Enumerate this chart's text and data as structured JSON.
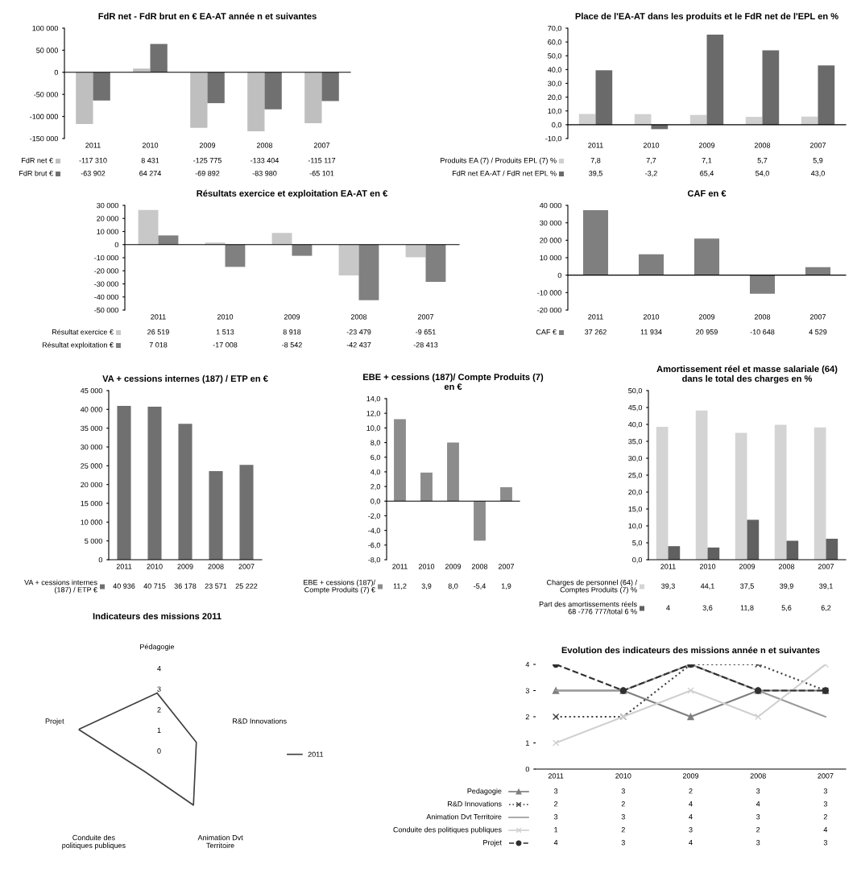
{
  "chart_data": [
    {
      "type": "bar",
      "title": "FdR net - FdR brut en € EA-AT année n et suivantes",
      "categories": [
        "2011",
        "2010",
        "2009",
        "2008",
        "2007"
      ],
      "legend": "bottom",
      "ylim": [
        -150000,
        100000
      ],
      "yticks": [
        {
          "value": -150000,
          "label": "-150 000"
        },
        {
          "value": -100000,
          "label": "-100 000"
        },
        {
          "value": -50000,
          "label": "-50 000"
        },
        0,
        {
          "value": 50000,
          "label": "50 000"
        },
        {
          "value": 100000,
          "label": "100 000"
        }
      ],
      "series": [
        {
          "name": "FdR net €",
          "color": "#bfbfbf",
          "values": [
            -117310,
            8431,
            -125775,
            -133404,
            -115117
          ],
          "value_labels": [
            "-117 310",
            "8 431",
            "-125 775",
            "-133 404",
            "-115 117"
          ]
        },
        {
          "name": "FdR brut €",
          "color": "#707070",
          "values": [
            -63902,
            64274,
            -69892,
            -83980,
            -65101
          ],
          "value_labels": [
            "-63 902",
            "64 274",
            "-69 892",
            "-83 980",
            "-65 101"
          ]
        }
      ]
    },
    {
      "type": "bar",
      "title": "Place de l'EA-AT dans les produits et le FdR net de l'EPL en %",
      "categories": [
        "2011",
        "2010",
        "2009",
        "2008",
        "2007"
      ],
      "legend": "bottom",
      "ylim": [
        -10,
        70
      ],
      "yticks": [
        {
          "value": -10,
          "label": "-10,0"
        },
        {
          "value": 0,
          "label": "0,0"
        },
        {
          "value": 10,
          "label": "10,0"
        },
        {
          "value": 20,
          "label": "20,0"
        },
        {
          "value": 30,
          "label": "30,0"
        },
        {
          "value": 40,
          "label": "40,0"
        },
        {
          "value": 50,
          "label": "50,0"
        },
        {
          "value": 60,
          "label": "60,0"
        },
        {
          "value": 70,
          "label": "70,0"
        }
      ],
      "series": [
        {
          "name": "Produits EA (7) / Produits EPL (7) %",
          "color": "#d0d0d0",
          "values": [
            7.8,
            7.7,
            7.1,
            5.7,
            5.9
          ],
          "value_labels": [
            "7,8",
            "7,7",
            "7,1",
            "5,7",
            "5,9"
          ]
        },
        {
          "name": "FdR net EA-AT / FdR net EPL %",
          "color": "#6a6a6a",
          "values": [
            39.5,
            -3.2,
            65.4,
            54.0,
            43.0
          ],
          "value_labels": [
            "39,5",
            "-3,2",
            "65,4",
            "54,0",
            "43,0"
          ]
        }
      ]
    },
    {
      "type": "bar",
      "title": "Résultats exercice et exploitation EA-AT en €",
      "categories": [
        "2011",
        "2010",
        "2009",
        "2008",
        "2007"
      ],
      "legend": "bottom",
      "ylim": [
        -50000,
        30000
      ],
      "yticks": [
        {
          "value": -50000,
          "label": "-50 000"
        },
        {
          "value": -40000,
          "label": "-40 000"
        },
        {
          "value": -30000,
          "label": "-30 000"
        },
        {
          "value": -20000,
          "label": "-20 000"
        },
        {
          "value": -10000,
          "label": "-10 000"
        },
        0,
        {
          "value": 10000,
          "label": "10 000"
        },
        {
          "value": 20000,
          "label": "20 000"
        },
        {
          "value": 30000,
          "label": "30 000"
        }
      ],
      "series": [
        {
          "name": "Résultat exercice €",
          "color": "#c8c8c8",
          "values": [
            26519,
            1513,
            8918,
            -23479,
            -9651
          ],
          "value_labels": [
            "26 519",
            "1 513",
            "8 918",
            "-23 479",
            "-9 651"
          ]
        },
        {
          "name": "Résultat exploitation €",
          "color": "#808080",
          "values": [
            7018,
            -17008,
            -8542,
            -42437,
            -28413
          ],
          "value_labels": [
            "7 018",
            "-17 008",
            "-8 542",
            "-42 437",
            "-28 413"
          ]
        }
      ]
    },
    {
      "type": "bar",
      "title": "CAF en €",
      "categories": [
        "2011",
        "2010",
        "2009",
        "2008",
        "2007"
      ],
      "legend": "bottom",
      "ylim": [
        -20000,
        40000
      ],
      "yticks": [
        {
          "value": -20000,
          "label": "-20 000"
        },
        {
          "value": -10000,
          "label": "-10 000"
        },
        0,
        {
          "value": 10000,
          "label": "10 000"
        },
        {
          "value": 20000,
          "label": "20 000"
        },
        {
          "value": 30000,
          "label": "30 000"
        },
        {
          "value": 40000,
          "label": "40 000"
        }
      ],
      "series": [
        {
          "name": "CAF €",
          "color": "#7f7f7f",
          "values": [
            37262,
            11934,
            20959,
            -10648,
            4529
          ],
          "value_labels": [
            "37 262",
            "11 934",
            "20 959",
            "-10 648",
            "4 529"
          ]
        }
      ]
    },
    {
      "type": "bar",
      "title": "VA + cessions internes (187) / ETP en €",
      "categories": [
        "2011",
        "2010",
        "2009",
        "2008",
        "2007"
      ],
      "legend": "bottom",
      "ylim": [
        0,
        45000
      ],
      "yticks": [
        0,
        {
          "value": 5000,
          "label": "5 000"
        },
        {
          "value": 10000,
          "label": "10 000"
        },
        {
          "value": 15000,
          "label": "15 000"
        },
        {
          "value": 20000,
          "label": "20 000"
        },
        {
          "value": 25000,
          "label": "25 000"
        },
        {
          "value": 30000,
          "label": "30 000"
        },
        {
          "value": 35000,
          "label": "35 000"
        },
        {
          "value": 40000,
          "label": "40 000"
        },
        {
          "value": 45000,
          "label": "45 000"
        }
      ],
      "series": [
        {
          "name": "VA + cessions internes\n(187) / ETP €",
          "color": "#707070",
          "values": [
            40936,
            40715,
            36178,
            23571,
            25222
          ],
          "value_labels": [
            "40 936",
            "40 715",
            "36 178",
            "23 571",
            "25 222"
          ]
        }
      ]
    },
    {
      "type": "bar",
      "title": "EBE + cessions (187)/ Compte Produits (7)\nen €",
      "categories": [
        "2011",
        "2010",
        "2009",
        "2008",
        "2007"
      ],
      "legend": "bottom",
      "ylim": [
        -8,
        14
      ],
      "yticks": [
        {
          "value": -8,
          "label": "-8,0"
        },
        {
          "value": -6,
          "label": "-6,0"
        },
        {
          "value": -4,
          "label": "-4,0"
        },
        {
          "value": -2,
          "label": "-2,0"
        },
        {
          "value": 0,
          "label": "0,0"
        },
        {
          "value": 2,
          "label": "2,0"
        },
        {
          "value": 4,
          "label": "4,0"
        },
        {
          "value": 6,
          "label": "6,0"
        },
        {
          "value": 8,
          "label": "8,0"
        },
        {
          "value": 10,
          "label": "10,0"
        },
        {
          "value": 12,
          "label": "12,0"
        },
        {
          "value": 14,
          "label": "14,0"
        }
      ],
      "series": [
        {
          "name": "EBE + cessions (187)/\nCompte Produits (7) €",
          "color": "#8c8c8c",
          "values": [
            11.2,
            3.9,
            8.0,
            -5.4,
            1.9
          ],
          "value_labels": [
            "11,2",
            "3,9",
            "8,0",
            "-5,4",
            "1,9"
          ]
        }
      ]
    },
    {
      "type": "bar",
      "title": "Amortissement réel et masse salariale (64)\ndans le total des charges en %",
      "categories": [
        "2011",
        "2010",
        "2009",
        "2008",
        "2007"
      ],
      "legend": "bottom",
      "ylim": [
        0,
        50
      ],
      "yticks": [
        {
          "value": 0,
          "label": "0,0"
        },
        {
          "value": 5,
          "label": "5,0"
        },
        {
          "value": 10,
          "label": "10,0"
        },
        {
          "value": 15,
          "label": "15,0"
        },
        {
          "value": 20,
          "label": "20,0"
        },
        {
          "value": 25,
          "label": "25,0"
        },
        {
          "value": 30,
          "label": "30,0"
        },
        {
          "value": 35,
          "label": "35,0"
        },
        {
          "value": 40,
          "label": "40,0"
        },
        {
          "value": 45,
          "label": "45,0"
        },
        {
          "value": 50,
          "label": "50,0"
        }
      ],
      "series": [
        {
          "name": "Charges de personnel (64) /\nComptes Produits (7) %",
          "color": "#d4d4d4",
          "values": [
            39.3,
            44.1,
            37.5,
            39.9,
            39.1
          ],
          "value_labels": [
            "39,3",
            "44,1",
            "37,5",
            "39,9",
            "39,1"
          ]
        },
        {
          "name": "Part des amortissements réels\n68 -776 777/total 6 %",
          "color": "#606060",
          "values": [
            4,
            3.6,
            11.8,
            5.6,
            6.2
          ],
          "value_labels": [
            "4",
            "3,6",
            "11,8",
            "5,6",
            "6,2"
          ]
        }
      ]
    },
    {
      "type": "radar",
      "title": "Indicateurs des missions 2011",
      "categories": [
        "Pédagogie",
        "R&D Innovations",
        "Animation Dvt\nTerritoire",
        "Conduite des\npolitiques publiques",
        "Projet"
      ],
      "legend": "right",
      "ylim": [
        0,
        4
      ],
      "yticks": [
        0,
        1,
        2,
        3,
        4
      ],
      "series": [
        {
          "name": "2011",
          "color": "#404040",
          "values": [
            3,
            2,
            3,
            1,
            4
          ]
        }
      ]
    },
    {
      "type": "line",
      "title": "Evolution des indicateurs des missions année n et suivantes",
      "categories": [
        "2011",
        "2010",
        "2009",
        "2008",
        "2007"
      ],
      "legend": "bottom",
      "data_labels": true,
      "ylim": [
        0,
        4
      ],
      "yticks": [
        0,
        1,
        2,
        3,
        4
      ],
      "series": [
        {
          "name": "Pedagogie",
          "color": "#7f7f7f",
          "marker": "triangle",
          "line_style": "solid",
          "values": [
            3,
            3,
            2,
            3,
            3
          ]
        },
        {
          "name": "R&D Innovations",
          "color": "#404040",
          "marker": "cross",
          "line_style": "dotted",
          "values": [
            2,
            2,
            4,
            4,
            3
          ]
        },
        {
          "name": "Animation Dvt Territoire",
          "color": "#9a9a9a",
          "line_style": "solid",
          "values": [
            3,
            3,
            4,
            3,
            2
          ]
        },
        {
          "name": "Conduite des politiques publiques",
          "color": "#d0d0d0",
          "marker": "cross",
          "line_style": "solid",
          "values": [
            1,
            2,
            3,
            2,
            4
          ]
        },
        {
          "name": "Projet",
          "color": "#303030",
          "marker": "circle",
          "line_style": "dashed",
          "values": [
            4,
            3,
            4,
            3,
            3
          ]
        }
      ]
    }
  ]
}
